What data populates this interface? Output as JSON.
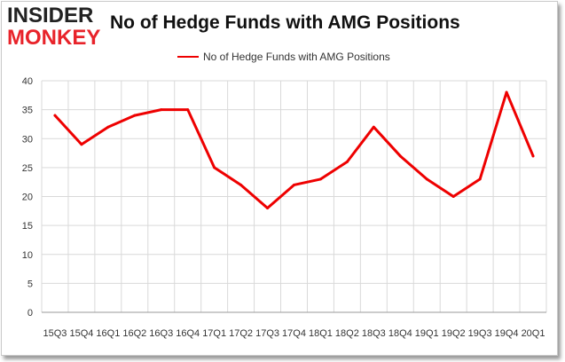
{
  "header": {
    "logo_line1": "INSIDER",
    "logo_line2": "MONKEY",
    "title": "No of Hedge Funds with AMG Positions"
  },
  "colors": {
    "series": "#ee0000",
    "grid": "#d9d9d9",
    "logo_red": "#e8232a"
  },
  "chart_data": {
    "type": "line",
    "title": "No of Hedge Funds with AMG Positions",
    "xlabel": "",
    "ylabel": "",
    "ylim": [
      0,
      40
    ],
    "yticks": [
      0,
      5,
      10,
      15,
      20,
      25,
      30,
      35,
      40
    ],
    "grid": true,
    "legend": "top-center",
    "categories": [
      "15Q3",
      "15Q4",
      "16Q1",
      "16Q2",
      "16Q3",
      "16Q4",
      "17Q1",
      "17Q2",
      "17Q3",
      "17Q4",
      "18Q1",
      "18Q2",
      "18Q3",
      "18Q4",
      "19Q1",
      "19Q2",
      "19Q3",
      "19Q4",
      "20Q1"
    ],
    "series": [
      {
        "name": "No of Hedge Funds with AMG Positions",
        "values": [
          34,
          29,
          32,
          34,
          35,
          35,
          25,
          22,
          18,
          22,
          23,
          26,
          32,
          27,
          23,
          20,
          23,
          38,
          27
        ]
      }
    ]
  }
}
